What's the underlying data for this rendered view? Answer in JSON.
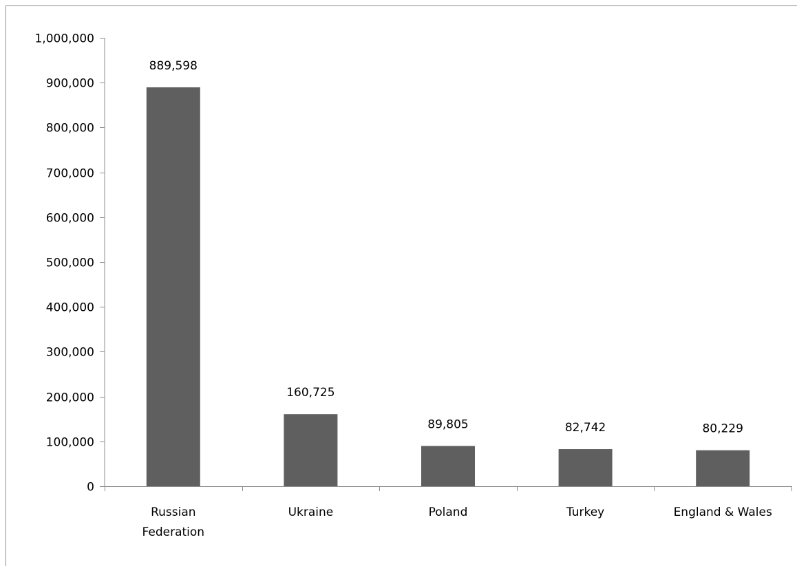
{
  "chart_data": {
    "type": "bar",
    "title": "",
    "xlabel": "",
    "ylabel": "",
    "categories": [
      "Russian Federation",
      "Ukraine",
      "Poland",
      "Turkey",
      "England & Wales"
    ],
    "category_lines": [
      [
        "Russian",
        "Federation"
      ],
      [
        "Ukraine"
      ],
      [
        "Poland"
      ],
      [
        "Turkey"
      ],
      [
        "England & Wales"
      ]
    ],
    "values": [
      889598,
      160725,
      89805,
      82742,
      80229
    ],
    "data_labels": [
      "889,598",
      "160,725",
      "89,805",
      "82,742",
      "80,229"
    ],
    "ylim": [
      0,
      1000000
    ],
    "y_ticks": [
      0,
      100000,
      200000,
      300000,
      400000,
      500000,
      600000,
      700000,
      800000,
      900000,
      1000000
    ],
    "y_tick_labels": [
      "0",
      "100,000",
      "200,000",
      "300,000",
      "400,000",
      "500,000",
      "600,000",
      "700,000",
      "800,000",
      "900,000",
      "1,000,000"
    ],
    "grid": false,
    "legend": "none",
    "bar_color": "#5f5f5f",
    "axis_color": "#8c8c8c"
  }
}
